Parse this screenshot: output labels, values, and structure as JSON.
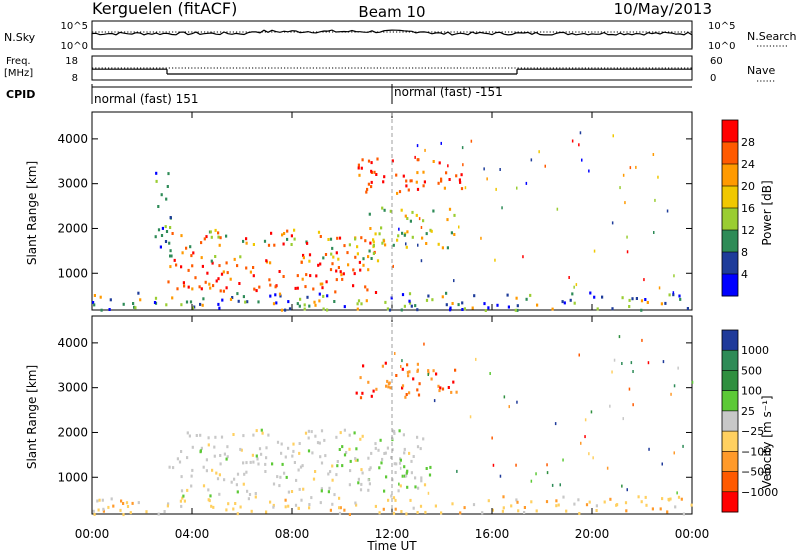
{
  "header": {
    "station": "Kerguelen (fitACF)",
    "beam": "Beam 10",
    "date": "10/May/2013"
  },
  "strips": {
    "nsky_label": "N.Sky",
    "nsky_ticks": [
      "10^5",
      "10^0"
    ],
    "nsearch_label": "N.Search",
    "nsearch_ticks": [
      "10^5",
      "10^0"
    ],
    "freq_label": "Freq.",
    "freq_unit": "[MHz]",
    "freq_ticks": [
      "18",
      "8"
    ],
    "nave_label": "Nave",
    "nave_ticks": [
      "60",
      "0"
    ],
    "cpid_label": "CPID",
    "cpid_segments": [
      {
        "label": "normal (fast) 151",
        "start_hour": 0,
        "end_hour": 12
      },
      {
        "label": "normal (fast) -151",
        "start_hour": 12,
        "end_hour": 24
      }
    ],
    "freq_series_mhz": [
      {
        "start_hour": 0,
        "end_hour": 3.0,
        "value": 12.5
      },
      {
        "start_hour": 3.0,
        "end_hour": 17.0,
        "value": 10.5
      },
      {
        "start_hour": 17.0,
        "end_hour": 24,
        "value": 12.5
      }
    ]
  },
  "chart_data": [
    {
      "type": "heatmap",
      "title": "",
      "xlabel": "",
      "ylabel": "Slant Range [km]",
      "xlim": [
        0,
        24
      ],
      "ylim": [
        180,
        4600
      ],
      "y_ticks": [
        1000,
        2000,
        3000,
        4000
      ],
      "colorbar": {
        "label": "Power [dB]",
        "ticks": [
          "28",
          "24",
          "20",
          "16",
          "12",
          "8",
          "4"
        ],
        "colors": [
          "#ff0000",
          "#ff5a00",
          "#ff9a00",
          "#f0c800",
          "#9acd32",
          "#2e8b57",
          "#1e3c9a",
          "#0000ff"
        ]
      },
      "regions": [
        {
          "t0": 0.0,
          "t1": 24.0,
          "r0": 200,
          "r1": 600,
          "level": "noise-mixed"
        },
        {
          "t0": 2.8,
          "t1": 11.5,
          "r0": 600,
          "r1": 1300,
          "level": "high"
        },
        {
          "t0": 3.0,
          "t1": 11.5,
          "r0": 1300,
          "r1": 2000,
          "level": "mixed"
        },
        {
          "t0": 2.5,
          "t1": 3.2,
          "r0": 1500,
          "r1": 3300,
          "level": "low"
        },
        {
          "t0": 11.0,
          "t1": 14.5,
          "r0": 1600,
          "r1": 2500,
          "level": "medium"
        },
        {
          "t0": 10.5,
          "t1": 14.8,
          "r0": 2800,
          "r1": 3600,
          "level": "high"
        }
      ]
    },
    {
      "type": "heatmap",
      "title": "",
      "xlabel": "Time UT",
      "ylabel": "Slant Range [km]",
      "xlim": [
        0,
        24
      ],
      "ylim": [
        180,
        4600
      ],
      "x_ticks": [
        "00:00",
        "04:00",
        "08:00",
        "12:00",
        "16:00",
        "20:00",
        "00:00"
      ],
      "y_ticks": [
        1000,
        2000,
        3000,
        4000
      ],
      "colorbar": {
        "label": "Velocity [m s⁻¹]",
        "ticks": [
          "1000",
          "500",
          "100",
          "25",
          "−25",
          "−100",
          "−500",
          "−1000"
        ],
        "colors": [
          "#1f3a9a",
          "#2e8b57",
          "#2f8f3f",
          "#5cc936",
          "#c8c8c8",
          "#ffd060",
          "#ff9a2a",
          "#ff5a00",
          "#ff0000"
        ]
      },
      "regions": [
        {
          "t0": 0.0,
          "t1": 24.0,
          "r0": 200,
          "r1": 600,
          "level": "slow-negative"
        },
        {
          "t0": 3.0,
          "t1": 13.5,
          "r0": 600,
          "r1": 2100,
          "level": "ground-scatter"
        },
        {
          "t0": 10.5,
          "t1": 14.8,
          "r0": 2800,
          "r1": 3600,
          "level": "negative"
        }
      ]
    }
  ]
}
